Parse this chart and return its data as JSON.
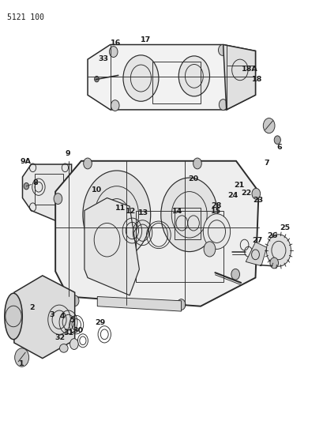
{
  "page_label": "5121 100",
  "bg_color": "#ffffff",
  "line_color": "#2a2a2a",
  "text_color": "#1a1a1a",
  "fig_width": 4.1,
  "fig_height": 5.33,
  "dpi": 100
}
